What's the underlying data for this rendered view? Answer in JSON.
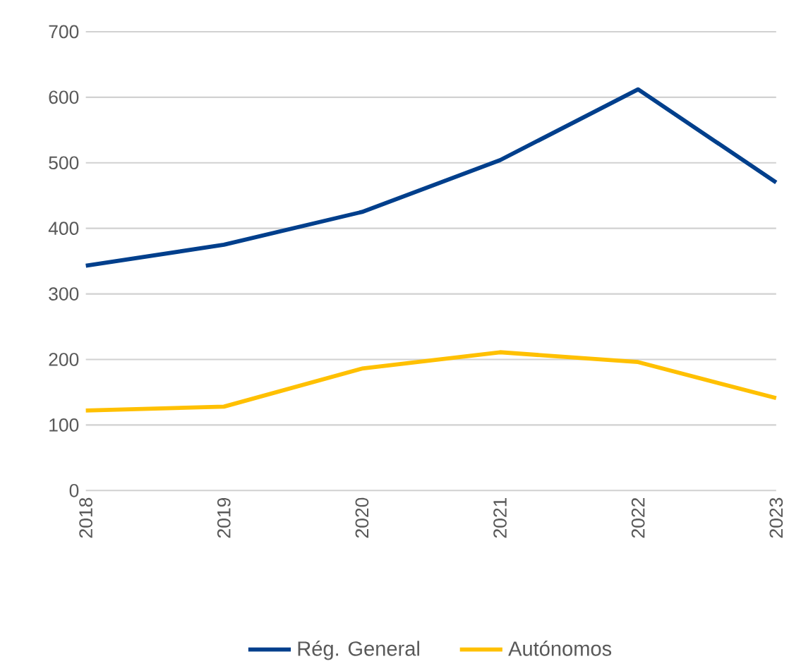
{
  "chart_data": {
    "type": "line",
    "categories": [
      "2018",
      "2019",
      "2020",
      "2021",
      "2022",
      "2023"
    ],
    "series": [
      {
        "name": "Rég. General",
        "color": "#003f8c",
        "values": [
          343,
          375,
          425,
          504,
          612,
          470
        ]
      },
      {
        "name": "Autónomos",
        "color": "#ffc000",
        "values": [
          122,
          128,
          186,
          211,
          196,
          141
        ]
      }
    ],
    "ylim": [
      0,
      700
    ],
    "yticks": [
      0,
      100,
      200,
      300,
      400,
      500,
      600,
      700
    ],
    "grid": "y",
    "legend": "bottom",
    "marker": "none",
    "line_style": "solid"
  }
}
